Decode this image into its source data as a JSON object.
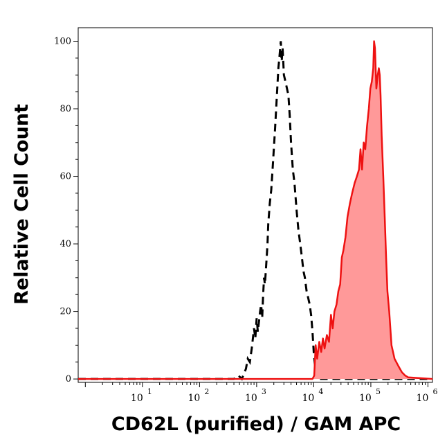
{
  "chart_data": {
    "type": "area",
    "xlabel": "CD62L (purified) / GAM APC",
    "ylabel": "Relative Cell Count",
    "x_scale": "log",
    "xlim": [
      0.75,
      1200000
    ],
    "ylim": [
      -1,
      104
    ],
    "grid": false,
    "legend": "none",
    "y_ticks": [
      0,
      20,
      40,
      60,
      80,
      100
    ],
    "x_ticks": [
      {
        "value": 10,
        "base": "10",
        "exp": "1"
      },
      {
        "value": 100,
        "base": "10",
        "exp": "2"
      },
      {
        "value": 1000,
        "base": "10",
        "exp": "3"
      },
      {
        "value": 10000,
        "base": "10",
        "exp": "4"
      },
      {
        "value": 100000,
        "base": "10",
        "exp": "5"
      },
      {
        "value": 1000000,
        "base": "10",
        "exp": "6"
      }
    ],
    "series": [
      {
        "style": "dashed-outline",
        "color": "#000000",
        "points": [
          [
            0.75,
            0
          ],
          [
            100,
            0
          ],
          [
            400,
            0
          ],
          [
            480,
            1
          ],
          [
            550,
            0
          ],
          [
            650,
            3
          ],
          [
            700,
            6
          ],
          [
            760,
            5
          ],
          [
            820,
            9
          ],
          [
            900,
            15
          ],
          [
            950,
            12
          ],
          [
            1000,
            18
          ],
          [
            1050,
            14
          ],
          [
            1150,
            20
          ],
          [
            1200,
            22
          ],
          [
            1250,
            18
          ],
          [
            1300,
            25
          ],
          [
            1350,
            30
          ],
          [
            1400,
            28
          ],
          [
            1500,
            36
          ],
          [
            1550,
            40
          ],
          [
            1600,
            46
          ],
          [
            1700,
            52
          ],
          [
            1800,
            56
          ],
          [
            1900,
            62
          ],
          [
            2000,
            68
          ],
          [
            2100,
            74
          ],
          [
            2200,
            80
          ],
          [
            2300,
            86
          ],
          [
            2400,
            92
          ],
          [
            2500,
            95
          ],
          [
            2650,
            100
          ],
          [
            2750,
            94
          ],
          [
            2850,
            98
          ],
          [
            3000,
            90
          ],
          [
            3200,
            88
          ],
          [
            3400,
            86
          ],
          [
            3600,
            84
          ],
          [
            3800,
            78
          ],
          [
            4000,
            70
          ],
          [
            4300,
            62
          ],
          [
            4600,
            58
          ],
          [
            5000,
            50
          ],
          [
            5400,
            44
          ],
          [
            5800,
            40
          ],
          [
            6200,
            36
          ],
          [
            6600,
            32
          ],
          [
            7000,
            30
          ],
          [
            7500,
            26
          ],
          [
            8000,
            24
          ],
          [
            8500,
            22
          ],
          [
            9000,
            19
          ],
          [
            9500,
            14
          ],
          [
            10000,
            8
          ],
          [
            10500,
            4
          ],
          [
            11000,
            0
          ],
          [
            1200000,
            0
          ]
        ]
      },
      {
        "style": "filled",
        "color": "#ee1111",
        "fill": "#ff9999",
        "points": [
          [
            0.75,
            0
          ],
          [
            9500,
            0
          ],
          [
            10200,
            1
          ],
          [
            10800,
            10
          ],
          [
            11500,
            6
          ],
          [
            12500,
            11
          ],
          [
            13500,
            8
          ],
          [
            14500,
            12
          ],
          [
            15500,
            9
          ],
          [
            17000,
            13
          ],
          [
            18500,
            11
          ],
          [
            20000,
            19
          ],
          [
            21500,
            15
          ],
          [
            23000,
            20
          ],
          [
            25000,
            22
          ],
          [
            27000,
            26
          ],
          [
            29000,
            28
          ],
          [
            31000,
            36
          ],
          [
            33000,
            38
          ],
          [
            36000,
            42
          ],
          [
            39000,
            48
          ],
          [
            43000,
            52
          ],
          [
            47000,
            55
          ],
          [
            52000,
            58
          ],
          [
            57000,
            60
          ],
          [
            62000,
            62
          ],
          [
            66000,
            68
          ],
          [
            70000,
            62
          ],
          [
            75000,
            70
          ],
          [
            80000,
            68
          ],
          [
            86000,
            75
          ],
          [
            92000,
            80
          ],
          [
            98000,
            86
          ],
          [
            104000,
            88
          ],
          [
            110000,
            92
          ],
          [
            114000,
            100
          ],
          [
            118000,
            98
          ],
          [
            125000,
            86
          ],
          [
            132000,
            90
          ],
          [
            138000,
            92
          ],
          [
            143000,
            90
          ],
          [
            148000,
            84
          ],
          [
            155000,
            72
          ],
          [
            165000,
            60
          ],
          [
            175000,
            48
          ],
          [
            185000,
            36
          ],
          [
            195000,
            26
          ],
          [
            210000,
            20
          ],
          [
            230000,
            10
          ],
          [
            260000,
            6
          ],
          [
            300000,
            4
          ],
          [
            350000,
            2
          ],
          [
            400000,
            1
          ],
          [
            450000,
            0.5
          ],
          [
            1200000,
            0
          ]
        ]
      }
    ]
  }
}
